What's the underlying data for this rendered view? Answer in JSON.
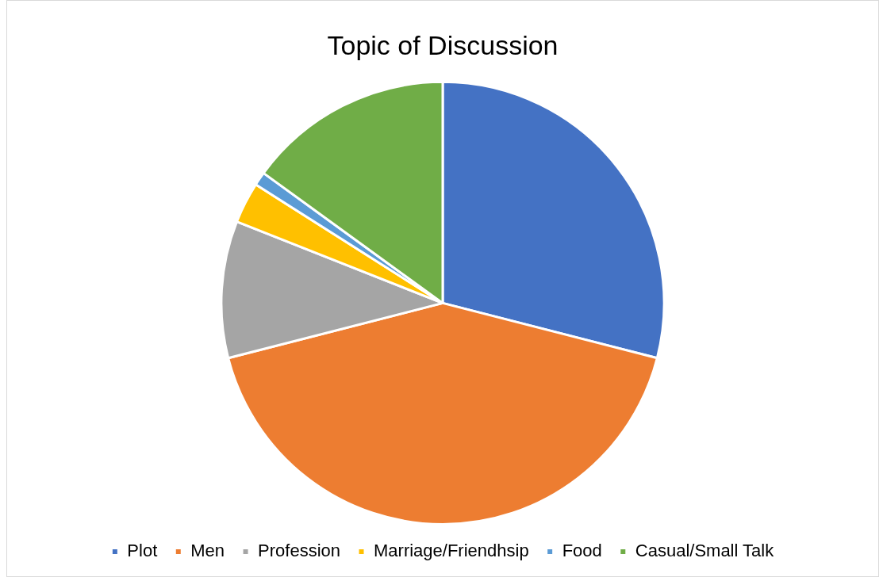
{
  "chart_data": {
    "type": "pie",
    "title": "Topic of Discussion",
    "categories": [
      "Plot",
      "Men",
      "Profession",
      "Marriage/Friendhsip",
      "Food",
      "Casual/Small Talk"
    ],
    "values": [
      29,
      42,
      10,
      3,
      1,
      15
    ],
    "colors": [
      "#4472c4",
      "#ed7d31",
      "#a5a5a5",
      "#ffc000",
      "#5b9bd5",
      "#70ad47"
    ],
    "legend": "bottom"
  }
}
